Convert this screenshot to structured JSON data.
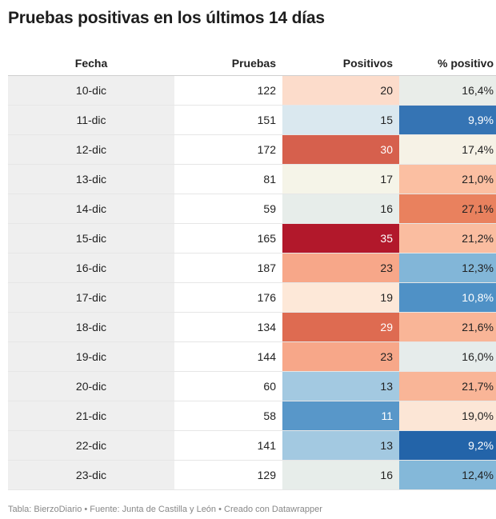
{
  "title": "Pruebas positivas en los últimos 14 días",
  "columns": [
    "Fecha",
    "Pruebas",
    "Positivos",
    "% positivo"
  ],
  "footer": "Tabla: BierzoDiario • Fuente: Junta de Castilla y León • Creado con Datawrapper",
  "chart_data": {
    "type": "table",
    "title": "Pruebas positivas en los últimos 14 días",
    "columns": [
      "Fecha",
      "Pruebas",
      "Positivos",
      "% positivo"
    ],
    "rows": [
      {
        "fecha": "10-dic",
        "pruebas": "122",
        "positivos": "20",
        "pct": "16,4%",
        "pos_color": "#fcdccb",
        "pct_color": "#e9ede9"
      },
      {
        "fecha": "11-dic",
        "pruebas": "151",
        "positivos": "15",
        "pct": "9,9%",
        "pos_color": "#dae8ef",
        "pct_color": "#3574b4"
      },
      {
        "fecha": "12-dic",
        "pruebas": "172",
        "positivos": "30",
        "pct": "17,4%",
        "pos_color": "#d6604d",
        "pct_color": "#f6f2e6"
      },
      {
        "fecha": "13-dic",
        "pruebas": "81",
        "positivos": "17",
        "pct": "21,0%",
        "pos_color": "#f5f4e8",
        "pct_color": "#fbbfa2"
      },
      {
        "fecha": "14-dic",
        "pruebas": "59",
        "positivos": "16",
        "pct": "27,1%",
        "pos_color": "#e7edea",
        "pct_color": "#e9815e"
      },
      {
        "fecha": "15-dic",
        "pruebas": "165",
        "positivos": "35",
        "pct": "21,2%",
        "pos_color": "#b2182b",
        "pct_color": "#fabda0"
      },
      {
        "fecha": "16-dic",
        "pruebas": "187",
        "positivos": "23",
        "pct": "12,3%",
        "pos_color": "#f7a789",
        "pct_color": "#82b6d8"
      },
      {
        "fecha": "17-dic",
        "pruebas": "176",
        "positivos": "19",
        "pct": "10,8%",
        "pos_color": "#fde8d8",
        "pct_color": "#4f91c6"
      },
      {
        "fecha": "18-dic",
        "pruebas": "134",
        "positivos": "29",
        "pct": "21,6%",
        "pos_color": "#de6b51",
        "pct_color": "#f9b597"
      },
      {
        "fecha": "19-dic",
        "pruebas": "144",
        "positivos": "23",
        "pct": "16,0%",
        "pos_color": "#f7a789",
        "pct_color": "#e6eceb"
      },
      {
        "fecha": "20-dic",
        "pruebas": "60",
        "positivos": "13",
        "pct": "21,7%",
        "pos_color": "#a3c9e1",
        "pct_color": "#f9b597"
      },
      {
        "fecha": "21-dic",
        "pruebas": "58",
        "positivos": "11",
        "pct": "19,0%",
        "pos_color": "#5897c9",
        "pct_color": "#fce6d6"
      },
      {
        "fecha": "22-dic",
        "pruebas": "141",
        "positivos": "13",
        "pct": "9,2%",
        "pos_color": "#a3c9e1",
        "pct_color": "#2364a9"
      },
      {
        "fecha": "23-dic",
        "pruebas": "129",
        "positivos": "16",
        "pct": "12,4%",
        "pos_color": "#e7edea",
        "pct_color": "#84b8d9"
      }
    ]
  }
}
